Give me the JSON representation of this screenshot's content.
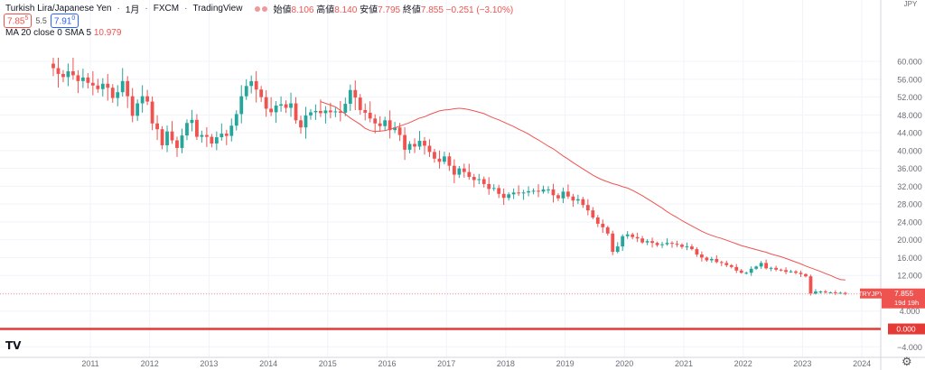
{
  "header": {
    "symbol": "Turkish Lira/Japanese Yen",
    "interval": "1月",
    "exchange": "FXCM",
    "source": "TradingView",
    "open_label": "始値",
    "open": "8.106",
    "high_label": "高値",
    "high": "8.140",
    "low_label": "安値",
    "low": "7.795",
    "close_label": "終値",
    "close": "7.855",
    "change": "−0.251 (−3.10%)"
  },
  "trade": {
    "sell": "7.85",
    "sell_sup": "5",
    "spread": "5.5",
    "buy": "7.91",
    "buy_sup": "0"
  },
  "indicator": {
    "label": "MA 20 close 0 SMA 5",
    "value": "10.979"
  },
  "axis": {
    "currency": "JPY"
  },
  "price_tag": {
    "symbol": "TRYJPY",
    "price": "7.855",
    "countdown": "19d 19h"
  },
  "zero_tag": "0.000",
  "colors": {
    "up": "#26a69a",
    "down": "#ef5350",
    "ma": "#ef5350",
    "zero_line": "#e53935",
    "grid": "#f0f3fa",
    "axis_text": "#6a6d78"
  },
  "chart_data": {
    "type": "candlestick",
    "title": "Turkish Lira/Japanese Yen",
    "ylim": [
      -4,
      62
    ],
    "y_ticks": [
      -4,
      0,
      4,
      8,
      12,
      16,
      20,
      24,
      28,
      32,
      36,
      40,
      44,
      48,
      52,
      56,
      60
    ],
    "y_tick_labels": [
      "−4.000",
      "0.000",
      "4.000",
      "8.000",
      "12.000",
      "16.000",
      "20.000",
      "24.000",
      "28.000",
      "32.000",
      "36.000",
      "40.000",
      "44.000",
      "48.000",
      "52.000",
      "56.000",
      "60.000"
    ],
    "x_tick_labels": [
      "2011",
      "2012",
      "2013",
      "2014",
      "2015",
      "2016",
      "2017",
      "2018",
      "2019",
      "2020",
      "2021",
      "2022",
      "2023",
      "2024"
    ],
    "x_start": 2010.42,
    "x_end": 2024.99,
    "ma_period": 20,
    "last_price": 7.855,
    "zero_line": 0,
    "closes": [
      58.5,
      57.2,
      56.5,
      57.8,
      56.9,
      55.6,
      56.4,
      55.2,
      54.6,
      53.8,
      55.0,
      54.1,
      51.8,
      53.1,
      55.6,
      52.2,
      47.8,
      50.6,
      52.2,
      51.0,
      46.1,
      44.8,
      41.2,
      44.3,
      42.3,
      40.6,
      43.4,
      46.2,
      46.9,
      43.1,
      43.5,
      43.1,
      41.6,
      43.0,
      43.8,
      43.3,
      45.6,
      48.2,
      52.2,
      54.5,
      55.6,
      53.7,
      52.0,
      49.4,
      48.6,
      50.1,
      50.4,
      49.6,
      50.6,
      46.8,
      45.2,
      47.9,
      48.6,
      48.9,
      48.4,
      49.0,
      48.6,
      48.8,
      48.5,
      50.5,
      53.6,
      51.9,
      49.1,
      48.5,
      47.2,
      46.1,
      45.5,
      46.8,
      44.6,
      45.2,
      43.5,
      40.2,
      41.5,
      40.9,
      42.2,
      41.1,
      39.7,
      38.2,
      37.5,
      38.7,
      36.6,
      34.6,
      36.0,
      35.2,
      34.1,
      33.4,
      33.6,
      32.5,
      31.4,
      31.6,
      30.3,
      29.4,
      30.2,
      30.6,
      30.4,
      30.6,
      30.9,
      31.0,
      30.8,
      31.3,
      31.3,
      30.0,
      29.3,
      30.8,
      29.7,
      28.8,
      29.1,
      27.8,
      26.6,
      25.0,
      23.6,
      22.8,
      21.4,
      17.3,
      18.5,
      20.8,
      21.2,
      20.6,
      20.3,
      19.4,
      19.7,
      19.3,
      18.8,
      19.0,
      19.3,
      19.1,
      18.9,
      18.4,
      18.5,
      17.9,
      16.7,
      16.0,
      15.4,
      15.7,
      15.0,
      14.8,
      14.3,
      13.9,
      13.1,
      12.6,
      12.6,
      13.5,
      14.0,
      14.8,
      13.6,
      13.7,
      13.3,
      13.2,
      12.8,
      12.9,
      12.6,
      12.3,
      11.8,
      7.9,
      8.4,
      8.4,
      8.2,
      8.2,
      8.0,
      8.1,
      7.855
    ],
    "ma_values": [
      51.0,
      50.6,
      50.2,
      49.8,
      49.0,
      48.2,
      47.3,
      46.6,
      45.9,
      45.0,
      44.5,
      44.3,
      44.4,
      44.5,
      44.8,
      45.1,
      45.5,
      45.9,
      46.3,
      46.8,
      47.3,
      47.6,
      48.1,
      48.5,
      48.9,
      49.1,
      49.2,
      49.4,
      49.5,
      49.4,
      49.2,
      48.9,
      48.6,
      48.3,
      47.8,
      47.3,
      46.9,
      46.4,
      45.9,
      45.4,
      44.8,
      44.3,
      43.7,
      43.0,
      42.4,
      41.7,
      41.0,
      40.4,
      39.6,
      38.8,
      38.1,
      37.3,
      36.6,
      35.9,
      35.2,
      34.5,
      33.9,
      33.4,
      33.0,
      32.6,
      32.3,
      31.9,
      31.6,
      31.1,
      30.5,
      29.9,
      29.2,
      28.5,
      27.8,
      27.1,
      26.3,
      25.6,
      25.0,
      24.3,
      23.7,
      23.1,
      22.5,
      21.9,
      21.4,
      21.0,
      20.6,
      20.3,
      19.9,
      19.5,
      19.1,
      18.7,
      18.4,
      18.1,
      17.8,
      17.5,
      17.2,
      16.8,
      16.5,
      16.2,
      15.8,
      15.4,
      15.0,
      14.6,
      14.1,
      13.7,
      13.3,
      12.9,
      12.4,
      12.0,
      11.5,
      11.1,
      10.979
    ]
  }
}
